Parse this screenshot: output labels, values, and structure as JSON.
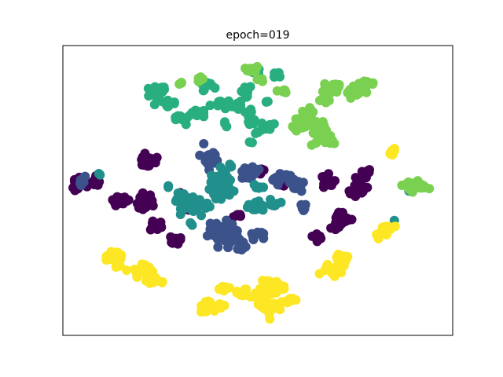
{
  "chart_data": {
    "type": "scatter",
    "title": "epoch=019",
    "xlabel": "",
    "ylabel": "",
    "xlim": [
      0,
      100
    ],
    "ylim": [
      0,
      100
    ],
    "grid": false,
    "legend": "none",
    "axis_ticks": "none",
    "series": [
      {
        "color": "#440154",
        "clusters": [
          {
            "cx": 4,
            "cy": 53,
            "sx": 1.6,
            "sy": 1.8,
            "n": 20
          },
          {
            "cx": 8.5,
            "cy": 53.5,
            "sx": 0.8,
            "sy": 1.6,
            "n": 10
          },
          {
            "cx": 15,
            "cy": 46,
            "sx": 1.6,
            "sy": 1.3,
            "n": 22
          },
          {
            "cx": 21,
            "cy": 46,
            "sx": 1.4,
            "sy": 2.4,
            "n": 24
          },
          {
            "cx": 22.5,
            "cy": 60,
            "sx": 2.2,
            "sy": 1.5,
            "n": 24
          },
          {
            "cx": 23.5,
            "cy": 37.5,
            "sx": 1.3,
            "sy": 1.3,
            "n": 12
          },
          {
            "cx": 29,
            "cy": 33,
            "sx": 1.6,
            "sy": 1.3,
            "n": 14
          },
          {
            "cx": 31.5,
            "cy": 45,
            "sx": 1.2,
            "sy": 2.8,
            "n": 16
          },
          {
            "cx": 70.5,
            "cy": 37,
            "sx": 1.0,
            "sy": 1.0,
            "n": 8
          },
          {
            "cx": 72,
            "cy": 40.5,
            "sx": 1.2,
            "sy": 2.0,
            "n": 18
          },
          {
            "cx": 65.5,
            "cy": 33.5,
            "sx": 1.0,
            "sy": 1.0,
            "n": 6
          },
          {
            "cx": 68,
            "cy": 52.5,
            "sx": 1.6,
            "sy": 2.2,
            "n": 14
          },
          {
            "cx": 75.5,
            "cy": 50.5,
            "sx": 1.6,
            "sy": 2.4,
            "n": 18
          },
          {
            "cx": 78,
            "cy": 56,
            "sx": 1.0,
            "sy": 1.0,
            "n": 8
          },
          {
            "cx": 56,
            "cy": 54,
            "sx": 1.4,
            "sy": 1.8,
            "n": 14
          },
          {
            "cx": 50.5,
            "cy": 56.5,
            "sx": 1.0,
            "sy": 1.2,
            "n": 8
          },
          {
            "cx": 45,
            "cy": 42,
            "sx": 0.8,
            "sy": 1.0,
            "n": 6
          }
        ]
      },
      {
        "color": "#3b528b",
        "clusters": [
          {
            "cx": 37.5,
            "cy": 61,
            "sx": 1.6,
            "sy": 2.3,
            "n": 24
          },
          {
            "cx": 47.5,
            "cy": 56,
            "sx": 2.4,
            "sy": 1.6,
            "n": 26
          },
          {
            "cx": 56.5,
            "cy": 54.5,
            "sx": 2.0,
            "sy": 1.4,
            "n": 18
          },
          {
            "cx": 59.5,
            "cy": 52,
            "sx": 1.6,
            "sy": 2.0,
            "n": 18
          },
          {
            "cx": 61.5,
            "cy": 44.5,
            "sx": 1.0,
            "sy": 1.0,
            "n": 8
          },
          {
            "cx": 41.5,
            "cy": 35,
            "sx": 3.0,
            "sy": 3.0,
            "n": 60
          },
          {
            "cx": 50,
            "cy": 34.5,
            "sx": 1.2,
            "sy": 1.0,
            "n": 10
          },
          {
            "cx": 46,
            "cy": 31,
            "sx": 1.2,
            "sy": 1.0,
            "n": 8
          },
          {
            "cx": 5,
            "cy": 53.5,
            "sx": 0.8,
            "sy": 1.4,
            "n": 6
          }
        ]
      },
      {
        "color": "#21908d",
        "clusters": [
          {
            "cx": 32.5,
            "cy": 46,
            "sx": 2.6,
            "sy": 2.6,
            "n": 46
          },
          {
            "cx": 40.5,
            "cy": 52,
            "sx": 2.2,
            "sy": 3.6,
            "n": 46
          },
          {
            "cx": 49.5,
            "cy": 44.5,
            "sx": 1.8,
            "sy": 1.4,
            "n": 22
          },
          {
            "cx": 50,
            "cy": 51,
            "sx": 0.9,
            "sy": 1.2,
            "n": 8
          },
          {
            "cx": 54.5,
            "cy": 45.5,
            "sx": 1.0,
            "sy": 1.0,
            "n": 8
          },
          {
            "cx": 27,
            "cy": 51,
            "sx": 0.5,
            "sy": 0.5,
            "n": 2
          },
          {
            "cx": 33,
            "cy": 38.5,
            "sx": 0.6,
            "sy": 0.6,
            "n": 3
          },
          {
            "cx": 9.5,
            "cy": 55.5,
            "sx": 0.6,
            "sy": 0.6,
            "n": 3
          },
          {
            "cx": 43,
            "cy": 58.5,
            "sx": 0.6,
            "sy": 0.6,
            "n": 3
          },
          {
            "cx": 85,
            "cy": 40,
            "sx": 0.3,
            "sy": 0.3,
            "n": 1
          },
          {
            "cx": 88.5,
            "cy": 51,
            "sx": 0.5,
            "sy": 0.5,
            "n": 3
          }
        ]
      },
      {
        "color": "#29af7f",
        "clusters": [
          {
            "cx": 24.5,
            "cy": 83.5,
            "sx": 1.8,
            "sy": 2.2,
            "n": 30
          },
          {
            "cx": 27,
            "cy": 80,
            "sx": 1.2,
            "sy": 1.2,
            "n": 10
          },
          {
            "cx": 37,
            "cy": 86,
            "sx": 1.3,
            "sy": 1.3,
            "n": 14
          },
          {
            "cx": 34.5,
            "cy": 77,
            "sx": 1.6,
            "sy": 1.2,
            "n": 14
          },
          {
            "cx": 30,
            "cy": 75,
            "sx": 1.6,
            "sy": 1.0,
            "n": 14
          },
          {
            "cx": 41,
            "cy": 80,
            "sx": 1.6,
            "sy": 1.3,
            "n": 14
          },
          {
            "cx": 47.5,
            "cy": 84,
            "sx": 1.2,
            "sy": 1.4,
            "n": 12
          },
          {
            "cx": 45,
            "cy": 79,
            "sx": 1.0,
            "sy": 1.2,
            "n": 8
          },
          {
            "cx": 48.5,
            "cy": 77,
            "sx": 0.9,
            "sy": 0.9,
            "n": 6
          },
          {
            "cx": 55,
            "cy": 89.5,
            "sx": 0.9,
            "sy": 0.9,
            "n": 8
          },
          {
            "cx": 49,
            "cy": 91,
            "sx": 1.0,
            "sy": 0.7,
            "n": 6
          },
          {
            "cx": 48.5,
            "cy": 74,
            "sx": 1.0,
            "sy": 1.0,
            "n": 8
          },
          {
            "cx": 52,
            "cy": 72,
            "sx": 1.0,
            "sy": 1.0,
            "n": 8
          },
          {
            "cx": 50,
            "cy": 70,
            "sx": 0.8,
            "sy": 0.8,
            "n": 4
          },
          {
            "cx": 42,
            "cy": 73,
            "sx": 0.7,
            "sy": 0.7,
            "n": 3
          },
          {
            "cx": 48,
            "cy": 66.5,
            "sx": 0.5,
            "sy": 0.5,
            "n": 2
          },
          {
            "cx": 52,
            "cy": 81,
            "sx": 0.6,
            "sy": 0.6,
            "n": 3
          }
        ]
      },
      {
        "color": "#7ad151",
        "clusters": [
          {
            "cx": 30,
            "cy": 87,
            "sx": 0.8,
            "sy": 0.5,
            "n": 3
          },
          {
            "cx": 35,
            "cy": 88,
            "sx": 1.2,
            "sy": 0.8,
            "n": 6
          },
          {
            "cx": 48,
            "cy": 92,
            "sx": 1.4,
            "sy": 0.8,
            "n": 10
          },
          {
            "cx": 51,
            "cy": 88.5,
            "sx": 0.6,
            "sy": 0.6,
            "n": 3
          },
          {
            "cx": 57,
            "cy": 84,
            "sx": 1.0,
            "sy": 0.7,
            "n": 6
          },
          {
            "cx": 67.5,
            "cy": 83,
            "sx": 1.8,
            "sy": 2.2,
            "n": 18
          },
          {
            "cx": 70.5,
            "cy": 85.5,
            "sx": 1.2,
            "sy": 1.0,
            "n": 8
          },
          {
            "cx": 75.5,
            "cy": 84.5,
            "sx": 1.8,
            "sy": 1.6,
            "n": 18
          },
          {
            "cx": 78.5,
            "cy": 87,
            "sx": 1.0,
            "sy": 0.8,
            "n": 8
          },
          {
            "cx": 63,
            "cy": 73,
            "sx": 2.0,
            "sy": 2.3,
            "n": 30
          },
          {
            "cx": 66.5,
            "cy": 70,
            "sx": 1.6,
            "sy": 1.4,
            "n": 16
          },
          {
            "cx": 59,
            "cy": 72,
            "sx": 1.0,
            "sy": 1.0,
            "n": 6
          },
          {
            "cx": 68.5,
            "cy": 67,
            "sx": 1.2,
            "sy": 0.7,
            "n": 8
          },
          {
            "cx": 64.5,
            "cy": 66,
            "sx": 0.6,
            "sy": 0.6,
            "n": 3
          },
          {
            "cx": 64,
            "cy": 77.5,
            "sx": 0.8,
            "sy": 0.8,
            "n": 4
          },
          {
            "cx": 90.5,
            "cy": 51.5,
            "sx": 2.0,
            "sy": 1.1,
            "n": 28
          }
        ]
      },
      {
        "color": "#fde725",
        "clusters": [
          {
            "cx": 85,
            "cy": 63.5,
            "sx": 0.8,
            "sy": 0.9,
            "n": 8
          },
          {
            "cx": 82.5,
            "cy": 35.5,
            "sx": 1.3,
            "sy": 1.6,
            "n": 14
          },
          {
            "cx": 84,
            "cy": 37,
            "sx": 0.8,
            "sy": 0.8,
            "n": 6
          },
          {
            "cx": 68.5,
            "cy": 23.5,
            "sx": 1.4,
            "sy": 1.8,
            "n": 16
          },
          {
            "cx": 71.5,
            "cy": 25.5,
            "sx": 1.2,
            "sy": 2.4,
            "n": 14
          },
          {
            "cx": 14,
            "cy": 27.5,
            "sx": 1.2,
            "sy": 1.0,
            "n": 12
          },
          {
            "cx": 19.5,
            "cy": 21.5,
            "sx": 2.6,
            "sy": 1.6,
            "n": 22
          },
          {
            "cx": 11.5,
            "cy": 27,
            "sx": 0.8,
            "sy": 0.8,
            "n": 6
          },
          {
            "cx": 14,
            "cy": 24,
            "sx": 1.0,
            "sy": 0.8,
            "n": 6
          },
          {
            "cx": 23,
            "cy": 19,
            "sx": 1.4,
            "sy": 1.0,
            "n": 12
          },
          {
            "cx": 14,
            "cy": 27,
            "sx": 0.8,
            "sy": 0.8,
            "n": 4
          },
          {
            "cx": 37.5,
            "cy": 10,
            "sx": 2.4,
            "sy": 1.2,
            "n": 20
          },
          {
            "cx": 41,
            "cy": 10.5,
            "sx": 1.0,
            "sy": 0.8,
            "n": 6
          },
          {
            "cx": 41.5,
            "cy": 16,
            "sx": 0.9,
            "sy": 0.9,
            "n": 8
          },
          {
            "cx": 51,
            "cy": 13.5,
            "sx": 2.0,
            "sy": 1.6,
            "n": 18
          },
          {
            "cx": 53.5,
            "cy": 9.5,
            "sx": 1.8,
            "sy": 2.0,
            "n": 20
          },
          {
            "cx": 55,
            "cy": 16.5,
            "sx": 1.2,
            "sy": 1.6,
            "n": 12
          },
          {
            "cx": 52.5,
            "cy": 18.5,
            "sx": 1.4,
            "sy": 1.0,
            "n": 10
          },
          {
            "cx": 46,
            "cy": 14.5,
            "sx": 1.4,
            "sy": 1.0,
            "n": 10
          },
          {
            "cx": 58,
            "cy": 12,
            "sx": 1.0,
            "sy": 1.0,
            "n": 8
          },
          {
            "cx": 12,
            "cy": 27,
            "sx": 0.5,
            "sy": 0.5,
            "n": 2
          }
        ]
      }
    ]
  }
}
